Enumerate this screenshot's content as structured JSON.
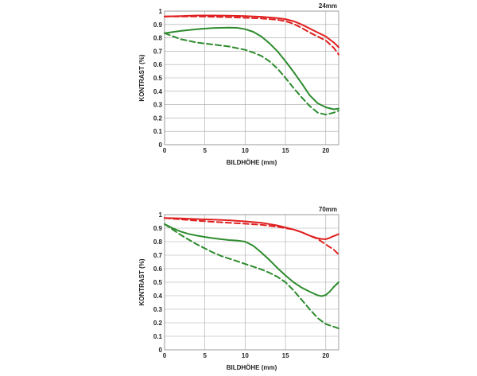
{
  "colors": {
    "red": "#e02020",
    "green": "#2e8b2e",
    "grid": "#a8a8a8",
    "text": "#222222"
  },
  "chart_data": [
    {
      "type": "line",
      "title": "24mm",
      "xlabel": "BILDHÖHE (mm)",
      "ylabel": "KONTRAST (%)",
      "xlim": [
        0,
        21.6
      ],
      "ylim": [
        0,
        1
      ],
      "x_ticks": [
        0,
        5,
        10,
        15,
        20
      ],
      "y_ticks": [
        0,
        0.1,
        0.2,
        0.3,
        0.4,
        0.5,
        0.6,
        0.7,
        0.8,
        0.9,
        1
      ],
      "grid": true,
      "series": [
        {
          "color": "red",
          "style": "solid",
          "x": [
            0,
            2,
            4,
            6,
            8,
            10,
            12,
            14,
            15,
            16,
            17,
            18,
            19,
            20,
            21,
            21.6
          ],
          "y": [
            0.96,
            0.963,
            0.967,
            0.967,
            0.966,
            0.963,
            0.958,
            0.948,
            0.94,
            0.925,
            0.9,
            0.87,
            0.84,
            0.81,
            0.765,
            0.73
          ]
        },
        {
          "color": "red",
          "style": "dashed",
          "x": [
            0,
            2,
            4,
            6,
            8,
            10,
            12,
            14,
            15,
            16,
            17,
            18,
            19,
            20,
            21,
            21.6
          ],
          "y": [
            0.96,
            0.96,
            0.96,
            0.958,
            0.955,
            0.95,
            0.945,
            0.935,
            0.925,
            0.905,
            0.875,
            0.84,
            0.81,
            0.78,
            0.725,
            0.675
          ]
        },
        {
          "color": "green",
          "style": "solid",
          "x": [
            0,
            2,
            4,
            6,
            8,
            9,
            10,
            11,
            12,
            13,
            14,
            15,
            16,
            17,
            18,
            19,
            20,
            21,
            21.6
          ],
          "y": [
            0.835,
            0.852,
            0.865,
            0.873,
            0.876,
            0.875,
            0.865,
            0.845,
            0.81,
            0.76,
            0.7,
            0.625,
            0.545,
            0.46,
            0.37,
            0.31,
            0.28,
            0.265,
            0.27
          ]
        },
        {
          "color": "green",
          "style": "dashed",
          "x": [
            0,
            2,
            4,
            6,
            8,
            10,
            11,
            12,
            13,
            14,
            15,
            16,
            17,
            18,
            19,
            20,
            21,
            21.6
          ],
          "y": [
            0.835,
            0.79,
            0.765,
            0.75,
            0.735,
            0.71,
            0.69,
            0.665,
            0.625,
            0.57,
            0.5,
            0.425,
            0.355,
            0.29,
            0.24,
            0.225,
            0.24,
            0.255
          ]
        }
      ]
    },
    {
      "type": "line",
      "title": "70mm",
      "xlabel": "BILDHÖHE (mm)",
      "ylabel": "KONTRAST (%)",
      "xlim": [
        0,
        21.6
      ],
      "ylim": [
        0,
        1
      ],
      "x_ticks": [
        0,
        5,
        10,
        15,
        20
      ],
      "y_ticks": [
        0,
        0.1,
        0.2,
        0.3,
        0.4,
        0.5,
        0.6,
        0.7,
        0.8,
        0.9,
        1
      ],
      "grid": true,
      "series": [
        {
          "color": "red",
          "style": "solid",
          "x": [
            0,
            2,
            4,
            6,
            8,
            10,
            12,
            14,
            16,
            17,
            18,
            19,
            19.5,
            20,
            20.5,
            21,
            21.6
          ],
          "y": [
            0.975,
            0.972,
            0.967,
            0.963,
            0.958,
            0.95,
            0.94,
            0.92,
            0.89,
            0.87,
            0.845,
            0.825,
            0.82,
            0.818,
            0.828,
            0.842,
            0.855
          ]
        },
        {
          "color": "red",
          "style": "dashed",
          "x": [
            0,
            2,
            4,
            6,
            8,
            10,
            12,
            14,
            16,
            17,
            18,
            19,
            20,
            21,
            21.6
          ],
          "y": [
            0.975,
            0.965,
            0.955,
            0.947,
            0.94,
            0.933,
            0.925,
            0.91,
            0.89,
            0.87,
            0.845,
            0.82,
            0.78,
            0.74,
            0.705
          ]
        },
        {
          "color": "green",
          "style": "solid",
          "x": [
            0,
            1,
            2,
            3,
            4,
            5,
            6,
            7,
            8,
            9,
            10,
            11,
            12,
            13,
            14,
            15,
            16,
            17,
            18,
            19,
            19.5,
            20,
            20.5,
            21,
            21.6
          ],
          "y": [
            0.93,
            0.9,
            0.875,
            0.857,
            0.845,
            0.835,
            0.826,
            0.818,
            0.812,
            0.808,
            0.8,
            0.77,
            0.72,
            0.665,
            0.605,
            0.55,
            0.5,
            0.46,
            0.43,
            0.403,
            0.397,
            0.405,
            0.43,
            0.465,
            0.5
          ]
        },
        {
          "color": "green",
          "style": "dashed",
          "x": [
            0,
            1,
            2,
            3,
            4,
            5,
            6,
            7,
            8,
            9,
            10,
            11,
            12,
            13,
            14,
            15,
            16,
            17,
            18,
            19,
            20,
            21,
            21.6
          ],
          "y": [
            0.93,
            0.89,
            0.85,
            0.815,
            0.78,
            0.75,
            0.72,
            0.695,
            0.675,
            0.655,
            0.635,
            0.615,
            0.595,
            0.57,
            0.54,
            0.5,
            0.44,
            0.37,
            0.3,
            0.235,
            0.19,
            0.17,
            0.158
          ]
        }
      ]
    }
  ]
}
